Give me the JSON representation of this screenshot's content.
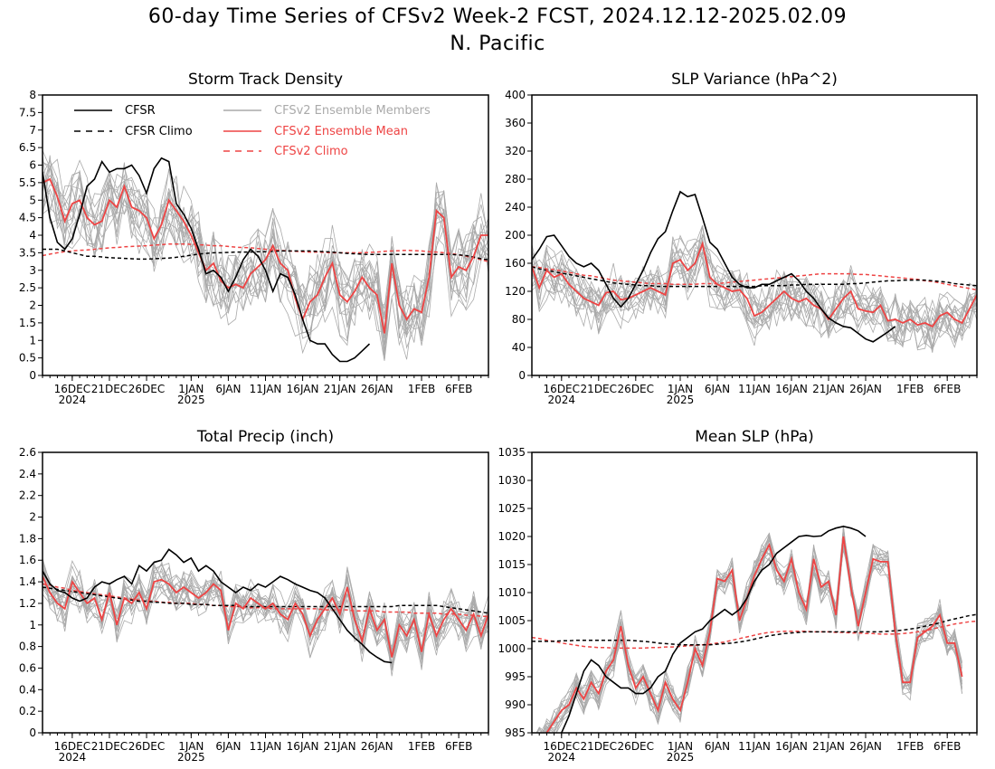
{
  "header": {
    "title": "60-day Time Series of CFSv2 Week-2 FCST, 2024.12.12-2025.02.09",
    "subtitle": "N. Pacific"
  },
  "colors": {
    "cfsr": "#000000",
    "members": "#aaaaaa",
    "ens_mean": "#ee4444",
    "cfsv2_climo": "#ee4444",
    "cfsr_climo": "#000000"
  },
  "legend": [
    {
      "label": "CFSR",
      "color": "#000000",
      "dash": false
    },
    {
      "label": "CFSR Climo",
      "color": "#000000",
      "dash": true
    },
    {
      "label": "CFSv2 Ensemble Members",
      "color": "#aaaaaa",
      "dash": false
    },
    {
      "label": "CFSv2 Ensemble Mean",
      "color": "#ee4444",
      "dash": false
    },
    {
      "label": "CFSv2 Climo",
      "color": "#ee4444",
      "dash": true
    }
  ],
  "x_ticks": [
    {
      "day": 4,
      "label": "16DEC",
      "year": "2024"
    },
    {
      "day": 9,
      "label": "21DEC",
      "year": ""
    },
    {
      "day": 14,
      "label": "26DEC",
      "year": ""
    },
    {
      "day": 20,
      "label": "1JAN",
      "year": "2025"
    },
    {
      "day": 25,
      "label": "6JAN",
      "year": ""
    },
    {
      "day": 30,
      "label": "11JAN",
      "year": ""
    },
    {
      "day": 35,
      "label": "16JAN",
      "year": ""
    },
    {
      "day": 40,
      "label": "21JAN",
      "year": ""
    },
    {
      "day": 45,
      "label": "26JAN",
      "year": ""
    },
    {
      "day": 51,
      "label": "1FEB",
      "year": ""
    },
    {
      "day": 56,
      "label": "6FEB",
      "year": ""
    }
  ],
  "chart_data": [
    {
      "type": "line",
      "title": "Storm Track Density",
      "x_start": "2024-12-12",
      "ylim": [
        0,
        8
      ],
      "yticks": [
        "0",
        "0.5",
        "1",
        "1.5",
        "2",
        "2.5",
        "3",
        "3.5",
        "4",
        "4.5",
        "5",
        "5.5",
        "6",
        "6.5",
        "7",
        "7.5",
        "8"
      ],
      "show_legend": true,
      "spread": 1.2,
      "cfsr": [
        5.8,
        4.5,
        3.8,
        3.6,
        3.9,
        4.6,
        5.4,
        5.6,
        6.1,
        5.8,
        5.9,
        5.9,
        6.0,
        5.7,
        5.2,
        5.9,
        6.2,
        6.1,
        4.9,
        4.6,
        4.2,
        3.6,
        2.9,
        3.0,
        2.8,
        2.4,
        2.8,
        3.3,
        3.6,
        3.4,
        3.0,
        2.4,
        2.9,
        2.8,
        2.3,
        1.6,
        1.0,
        0.9,
        0.9,
        0.6,
        0.4,
        0.4,
        0.5,
        0.7,
        0.9
      ],
      "ens_mean": [
        5.5,
        5.6,
        5.1,
        4.4,
        4.9,
        5.0,
        4.5,
        4.3,
        4.4,
        5.0,
        4.8,
        5.4,
        4.8,
        4.7,
        4.5,
        3.9,
        4.3,
        5.0,
        4.7,
        4.4,
        4.0,
        3.5,
        3.0,
        3.2,
        2.7,
        2.5,
        2.6,
        2.5,
        2.9,
        3.1,
        3.3,
        3.7,
        3.2,
        3.0,
        2.2,
        1.6,
        2.1,
        2.3,
        2.8,
        3.2,
        2.3,
        2.1,
        2.4,
        2.8,
        2.5,
        2.3,
        1.2,
        3.2,
        2.0,
        1.6,
        1.9,
        1.8,
        2.8,
        4.7,
        4.5,
        2.8,
        3.1,
        3.0,
        3.4,
        4.0,
        4.0
      ],
      "cfsr_climo": [
        3.6,
        3.6,
        3.6,
        3.55,
        3.5,
        3.45,
        3.4,
        3.4,
        3.38,
        3.36,
        3.35,
        3.34,
        3.33,
        3.32,
        3.32,
        3.33,
        3.34,
        3.35,
        3.37,
        3.4,
        3.43,
        3.46,
        3.48,
        3.5,
        3.5,
        3.51,
        3.52,
        3.52,
        3.52,
        3.53,
        3.53,
        3.54,
        3.55,
        3.55,
        3.55,
        3.55,
        3.55,
        3.54,
        3.53,
        3.52,
        3.5,
        3.48,
        3.47,
        3.46,
        3.45,
        3.45,
        3.45,
        3.45,
        3.45,
        3.45,
        3.45,
        3.45,
        3.45,
        3.45,
        3.45,
        3.45,
        3.44,
        3.42,
        3.38,
        3.33,
        3.3
      ],
      "cfsv2_climo": [
        3.42,
        3.46,
        3.5,
        3.53,
        3.55,
        3.57,
        3.58,
        3.6,
        3.62,
        3.64,
        3.65,
        3.67,
        3.68,
        3.69,
        3.7,
        3.72,
        3.73,
        3.75,
        3.75,
        3.75,
        3.74,
        3.73,
        3.72,
        3.7,
        3.7,
        3.68,
        3.66,
        3.65,
        3.64,
        3.62,
        3.6,
        3.58,
        3.57,
        3.55,
        3.54,
        3.53,
        3.52,
        3.52,
        3.51,
        3.5,
        3.5,
        3.5,
        3.5,
        3.5,
        3.51,
        3.52,
        3.54,
        3.55,
        3.56,
        3.57,
        3.56,
        3.55,
        3.53,
        3.52,
        3.5,
        3.48,
        3.44,
        3.4,
        3.36,
        3.3,
        3.25
      ]
    },
    {
      "type": "line",
      "title": "SLP Variance (hPa^2)",
      "x_start": "2024-12-12",
      "ylim": [
        0,
        400
      ],
      "yticks": [
        "0",
        "40",
        "80",
        "120",
        "160",
        "200",
        "240",
        "280",
        "320",
        "360",
        "400"
      ],
      "show_legend": false,
      "spread": 40,
      "cfsr": [
        165,
        180,
        198,
        200,
        185,
        170,
        160,
        155,
        160,
        150,
        130,
        110,
        98,
        110,
        130,
        150,
        175,
        195,
        205,
        235,
        262,
        255,
        258,
        225,
        190,
        180,
        160,
        140,
        130,
        125,
        125,
        130,
        130,
        135,
        140,
        145,
        135,
        120,
        110,
        95,
        82,
        75,
        70,
        68,
        60,
        52,
        48,
        55,
        62,
        70
      ],
      "ens_mean": [
        155,
        125,
        150,
        140,
        145,
        130,
        120,
        110,
        105,
        100,
        118,
        120,
        108,
        110,
        115,
        120,
        125,
        120,
        115,
        160,
        165,
        150,
        160,
        188,
        140,
        130,
        125,
        120,
        122,
        110,
        85,
        90,
        100,
        110,
        120,
        110,
        105,
        110,
        100,
        95,
        80,
        95,
        110,
        120,
        95,
        92,
        90,
        100,
        78,
        80,
        75,
        80,
        72,
        75,
        70,
        85,
        90,
        80,
        75,
        95,
        115,
        100,
        80
      ],
      "cfsr_climo": [
        155,
        152,
        150,
        148,
        146,
        144,
        142,
        140,
        138,
        136,
        134,
        132,
        131,
        130,
        129,
        128,
        128,
        127,
        127,
        127,
        127,
        127,
        127,
        127,
        127,
        127,
        127,
        127,
        127,
        127,
        127,
        128,
        128,
        128,
        128,
        129,
        129,
        130,
        130,
        130,
        130,
        130,
        130,
        131,
        131,
        132,
        133,
        134,
        135,
        135,
        136,
        136,
        136,
        136,
        135,
        134,
        133,
        131,
        130,
        129,
        128
      ],
      "cfsv2_climo": [
        155,
        154,
        152,
        151,
        149,
        147,
        145,
        143,
        142,
        140,
        138,
        136,
        135,
        134,
        133,
        132,
        131,
        131,
        131,
        130,
        130,
        130,
        130,
        131,
        131,
        131,
        132,
        133,
        134,
        135,
        136,
        137,
        138,
        139,
        140,
        141,
        142,
        143,
        144,
        145,
        145,
        145,
        145,
        145,
        144,
        144,
        143,
        142,
        141,
        140,
        139,
        138,
        137,
        135,
        134,
        132,
        130,
        128,
        126,
        124,
        122
      ]
    },
    {
      "type": "line",
      "title": "Total Precip (inch)",
      "x_start": "2024-12-12",
      "ylim": [
        0,
        2.6
      ],
      "yticks": [
        "0",
        "0.2",
        "0.4",
        "0.6",
        "0.8",
        "1",
        "1.2",
        "1.4",
        "1.6",
        "1.8",
        "2",
        "2.2",
        "2.4",
        "2.6"
      ],
      "show_legend": false,
      "spread": 0.2,
      "cfsr": [
        1.5,
        1.38,
        1.32,
        1.3,
        1.25,
        1.22,
        1.25,
        1.35,
        1.4,
        1.38,
        1.42,
        1.45,
        1.38,
        1.55,
        1.5,
        1.58,
        1.6,
        1.7,
        1.65,
        1.58,
        1.62,
        1.5,
        1.55,
        1.5,
        1.4,
        1.35,
        1.3,
        1.35,
        1.32,
        1.38,
        1.35,
        1.4,
        1.45,
        1.42,
        1.38,
        1.35,
        1.32,
        1.3,
        1.25,
        1.15,
        1.05,
        0.95,
        0.88,
        0.82,
        0.75,
        0.7,
        0.66,
        0.65
      ],
      "ens_mean": [
        1.45,
        1.3,
        1.2,
        1.15,
        1.4,
        1.3,
        1.2,
        1.25,
        1.05,
        1.3,
        1.0,
        1.25,
        1.2,
        1.3,
        1.15,
        1.4,
        1.42,
        1.38,
        1.3,
        1.35,
        1.3,
        1.25,
        1.3,
        1.38,
        1.32,
        0.95,
        1.2,
        1.15,
        1.25,
        1.2,
        1.15,
        1.2,
        1.1,
        1.05,
        1.2,
        1.1,
        0.9,
        1.05,
        1.15,
        1.25,
        1.1,
        1.35,
        1.05,
        0.85,
        1.15,
        0.95,
        1.05,
        0.7,
        1.0,
        0.9,
        1.05,
        0.75,
        1.1,
        0.9,
        1.05,
        1.15,
        1.05,
        0.95,
        1.1,
        0.9,
        1.1
      ],
      "cfsr_climo": [
        1.35,
        1.34,
        1.33,
        1.32,
        1.31,
        1.3,
        1.29,
        1.28,
        1.27,
        1.26,
        1.25,
        1.24,
        1.23,
        1.22,
        1.22,
        1.21,
        1.21,
        1.2,
        1.2,
        1.2,
        1.19,
        1.19,
        1.19,
        1.18,
        1.18,
        1.18,
        1.18,
        1.17,
        1.17,
        1.17,
        1.17,
        1.17,
        1.17,
        1.17,
        1.17,
        1.17,
        1.17,
        1.17,
        1.17,
        1.17,
        1.17,
        1.17,
        1.17,
        1.17,
        1.17,
        1.17,
        1.17,
        1.17,
        1.18,
        1.18,
        1.18,
        1.18,
        1.18,
        1.18,
        1.17,
        1.16,
        1.15,
        1.14,
        1.13,
        1.12,
        1.11
      ],
      "cfsv2_climo": [
        1.38,
        1.37,
        1.35,
        1.34,
        1.32,
        1.31,
        1.3,
        1.29,
        1.28,
        1.27,
        1.26,
        1.25,
        1.24,
        1.23,
        1.22,
        1.22,
        1.21,
        1.21,
        1.2,
        1.2,
        1.2,
        1.19,
        1.19,
        1.18,
        1.18,
        1.17,
        1.17,
        1.17,
        1.16,
        1.16,
        1.16,
        1.15,
        1.15,
        1.15,
        1.15,
        1.15,
        1.15,
        1.15,
        1.14,
        1.14,
        1.14,
        1.14,
        1.13,
        1.13,
        1.13,
        1.13,
        1.12,
        1.12,
        1.12,
        1.12,
        1.11,
        1.11,
        1.11,
        1.11,
        1.1,
        1.1,
        1.1,
        1.09,
        1.09,
        1.08,
        1.08
      ]
    },
    {
      "type": "line",
      "title": "Mean SLP (hPa)",
      "x_start": "2024-12-12",
      "ylim": [
        985,
        1035
      ],
      "yticks": [
        "985",
        "990",
        "995",
        "1000",
        "1005",
        "1010",
        "1015",
        "1020",
        "1025",
        "1030",
        "1035"
      ],
      "show_legend": false,
      "spread": 3,
      "cfsr": [
        983,
        982,
        983,
        984,
        985,
        988,
        992,
        996,
        998,
        997,
        995,
        994,
        993,
        993,
        992,
        992,
        993,
        995,
        996,
        999,
        1001,
        1002,
        1003,
        1003.5,
        1005,
        1006,
        1007,
        1006,
        1007,
        1009,
        1012,
        1014,
        1015,
        1017,
        1018,
        1019,
        1020,
        1020.2,
        1020,
        1020.1,
        1021,
        1021.5,
        1021.8,
        1021.5,
        1021,
        1020
      ],
      "ens_mean": [
        983,
        984,
        985,
        987,
        989,
        990,
        993,
        991,
        994,
        992,
        996,
        998,
        1004,
        997,
        993,
        995,
        992,
        989,
        994,
        991,
        989,
        994,
        1000,
        997,
        1003,
        1012.5,
        1012,
        1014,
        1005,
        1009,
        1013,
        1016,
        1018.5,
        1014,
        1012,
        1016,
        1010,
        1007,
        1016,
        1011,
        1012,
        1006,
        1020,
        1011,
        1004,
        1010,
        1016,
        1015.5,
        1015.5,
        1003,
        994,
        994,
        1002,
        1003,
        1004,
        1006,
        1001,
        1001,
        995
      ],
      "cfsr_climo": [
        1001.3,
        1001.3,
        1001.3,
        1001.3,
        1001.4,
        1001.4,
        1001.5,
        1001.5,
        1001.5,
        1001.5,
        1001.5,
        1001.5,
        1001.5,
        1001.5,
        1001.4,
        1001.3,
        1001.2,
        1001,
        1000.9,
        1000.8,
        1000.7,
        1000.7,
        1000.7,
        1000.7,
        1000.7,
        1000.8,
        1000.9,
        1001,
        1001.2,
        1001.4,
        1001.7,
        1002,
        1002.3,
        1002.5,
        1002.7,
        1002.8,
        1002.9,
        1003,
        1003,
        1003,
        1003,
        1003,
        1003,
        1003,
        1003,
        1003,
        1003,
        1003,
        1003.1,
        1003.2,
        1003.3,
        1003.5,
        1003.7,
        1004,
        1004.3,
        1004.6,
        1005,
        1005.3,
        1005.6,
        1005.9,
        1006.1
      ],
      "cfsv2_climo": [
        1002,
        1001.8,
        1001.5,
        1001.3,
        1001,
        1000.8,
        1000.6,
        1000.4,
        1000.3,
        1000.2,
        1000.2,
        1000.1,
        1000.1,
        1000.1,
        1000.1,
        1000.1,
        1000.2,
        1000.2,
        1000.3,
        1000.3,
        1000.4,
        1000.5,
        1000.6,
        1000.7,
        1000.8,
        1001,
        1001.2,
        1001.5,
        1001.8,
        1002.1,
        1002.4,
        1002.7,
        1002.9,
        1003,
        1003.1,
        1003.1,
        1003.1,
        1003.1,
        1003,
        1003,
        1003,
        1002.9,
        1002.9,
        1002.8,
        1002.8,
        1002.7,
        1002.7,
        1002.6,
        1002.6,
        1002.6,
        1002.7,
        1002.8,
        1003,
        1003.2,
        1003.5,
        1003.8,
        1004.1,
        1004.4,
        1004.6,
        1004.8,
        1004.9
      ]
    }
  ]
}
